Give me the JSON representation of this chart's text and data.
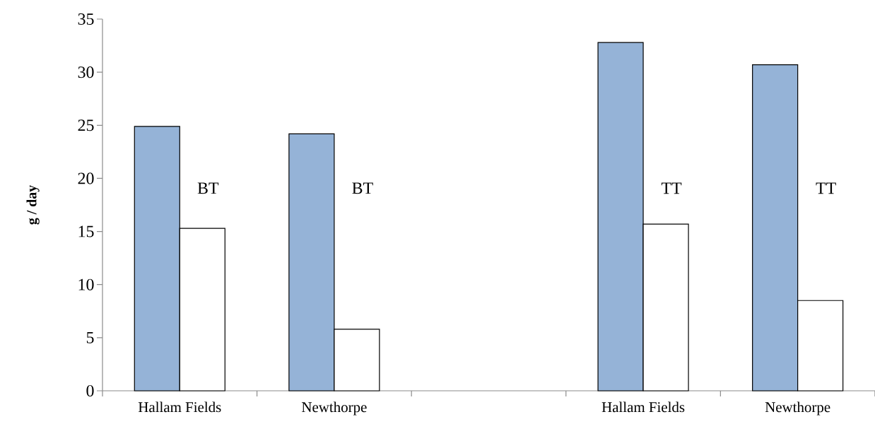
{
  "chart_data": {
    "type": "bar",
    "ylabel": "g / day",
    "categories": [
      "Hallam Fields",
      "Newthorpe",
      null,
      "Hallam Fields",
      "Newthorpe"
    ],
    "series": [
      {
        "color": "#95b3d7",
        "values": [
          24.9,
          24.2,
          null,
          32.8,
          30.7
        ]
      },
      {
        "color": "#ffffff",
        "values": [
          15.3,
          5.8,
          null,
          15.7,
          8.5
        ]
      }
    ],
    "ylim": [
      0,
      35
    ],
    "yticks": [
      0,
      5,
      10,
      15,
      20,
      25,
      30,
      35
    ],
    "annotations": [
      "BT",
      "BT",
      "TT",
      "TT"
    ]
  }
}
